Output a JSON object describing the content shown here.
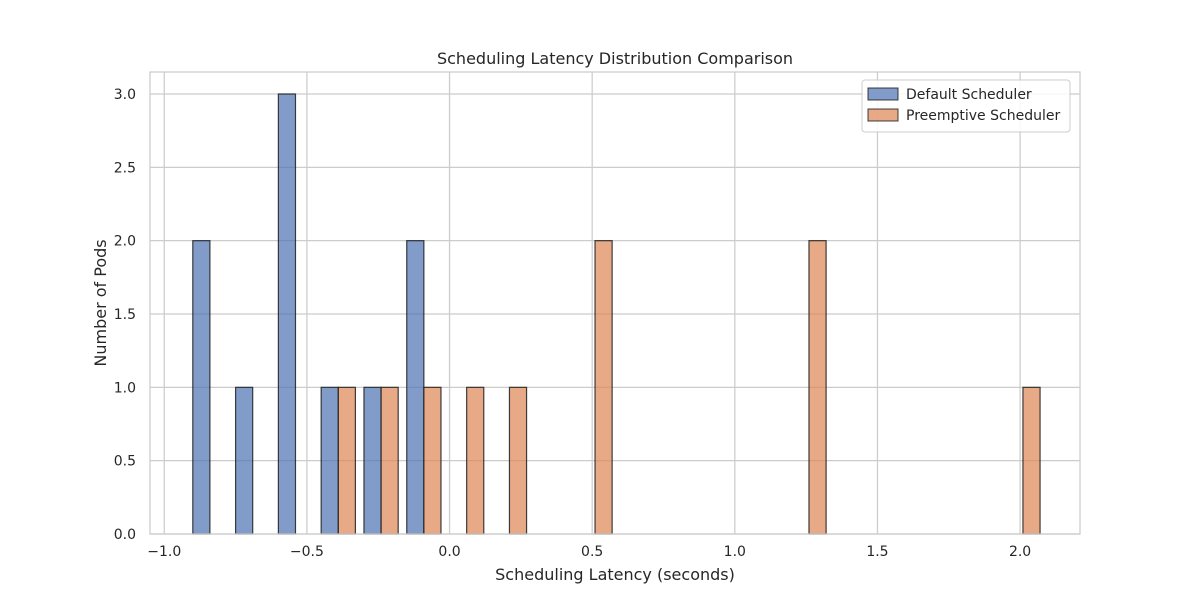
{
  "chart_data": {
    "type": "bar",
    "title": "Scheduling Latency Distribution Comparison",
    "xlabel": "Scheduling Latency (seconds)",
    "ylabel": "Number of Pods",
    "xlim": [
      -1.05,
      2.21
    ],
    "ylim": [
      0,
      3.15
    ],
    "xticks": [
      -1.0,
      -0.5,
      0.0,
      0.5,
      1.0,
      1.5,
      2.0
    ],
    "xtick_labels": [
      "−1.0",
      "−0.5",
      "0.0",
      "0.5",
      "1.0",
      "1.5",
      "2.0"
    ],
    "yticks": [
      0.0,
      0.5,
      1.0,
      1.5,
      2.0,
      2.5,
      3.0
    ],
    "ytick_labels": [
      "0.0",
      "0.5",
      "1.0",
      "1.5",
      "2.0",
      "2.5",
      "3.0"
    ],
    "grid": true,
    "legend_position": "top-right",
    "bar_width": 0.06,
    "series": [
      {
        "name": "Default Scheduler",
        "color": "#4c72b0",
        "bars": [
          {
            "x0": -0.9,
            "value": 2
          },
          {
            "x0": -0.75,
            "value": 1
          },
          {
            "x0": -0.6,
            "value": 3
          },
          {
            "x0": -0.45,
            "value": 1
          },
          {
            "x0": -0.3,
            "value": 1
          },
          {
            "x0": -0.15,
            "value": 2
          }
        ]
      },
      {
        "name": "Preemptive Scheduler",
        "color": "#dd8452",
        "bars": [
          {
            "x0": -0.39,
            "value": 1
          },
          {
            "x0": -0.24,
            "value": 1
          },
          {
            "x0": -0.09,
            "value": 1
          },
          {
            "x0": 0.06,
            "value": 1
          },
          {
            "x0": 0.21,
            "value": 1
          },
          {
            "x0": 0.51,
            "value": 2
          },
          {
            "x0": 1.26,
            "value": 2
          },
          {
            "x0": 2.01,
            "value": 1
          }
        ]
      }
    ]
  }
}
